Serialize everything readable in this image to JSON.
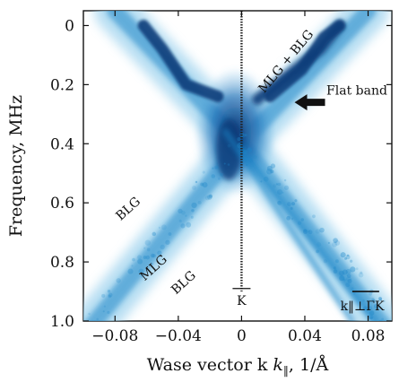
{
  "chart_data": {
    "type": "heatmap",
    "title": "",
    "xlabel": "Wase vector k",
    "xlabel_sub": "‖",
    "xlabel_unit": ", 1/Å",
    "ylabel": "Frequency, MHz",
    "xlim": [
      -0.1,
      0.095
    ],
    "ylim": [
      1.0,
      -0.05
    ],
    "x_ticks": [
      -0.08,
      -0.04,
      0,
      0.04,
      0.08
    ],
    "x_tick_labels": [
      "−0.08",
      "−0.04",
      "0",
      "0.04",
      "0.08"
    ],
    "y_ticks": [
      0,
      0.2,
      0.4,
      0.6,
      0.8,
      1.0
    ],
    "y_tick_labels": [
      "0",
      "0.2",
      "0.4",
      "0.6",
      "0.8",
      "1.0"
    ],
    "colormap": [
      "#ffffff",
      "#9fd3ee",
      "#1e86c8",
      "#0b3d7a",
      "#050c1c"
    ],
    "bands": [
      {
        "name": "MLG",
        "x": [
          0.0,
          0.085
        ],
        "y": [
          0.42,
          1.0
        ]
      },
      {
        "name": "BLG",
        "x": [
          -0.01,
          0.07
        ],
        "y": [
          0.36,
          1.0
        ]
      },
      {
        "name": "MLG + BLG",
        "x": [
          0.01,
          0.05,
          0.062
        ],
        "y": [
          0.25,
          0.08,
          0.0
        ]
      },
      {
        "name": "Flat band",
        "x": [
          -0.04,
          0.02
        ],
        "y": [
          0.25,
          0.25
        ]
      }
    ],
    "annotations": [
      {
        "text": "MLG + BLG",
        "x": 0.03,
        "y": 0.13
      },
      {
        "text": "Flat band",
        "x": 0.076,
        "y": 0.24
      },
      {
        "text": "BLG",
        "x": -0.07,
        "y": 0.63
      },
      {
        "text": "MLG",
        "x": -0.054,
        "y": 0.83
      },
      {
        "text": "BLG",
        "x": -0.035,
        "y": 0.88
      },
      {
        "text": "K",
        "x": 0.0,
        "y": 0.925
      },
      {
        "text": "k‖⊥ΓK",
        "x": 0.082,
        "y": 0.96
      }
    ],
    "vertical_marker_x": 0.0,
    "flat_band_arrow_y": 0.26
  }
}
